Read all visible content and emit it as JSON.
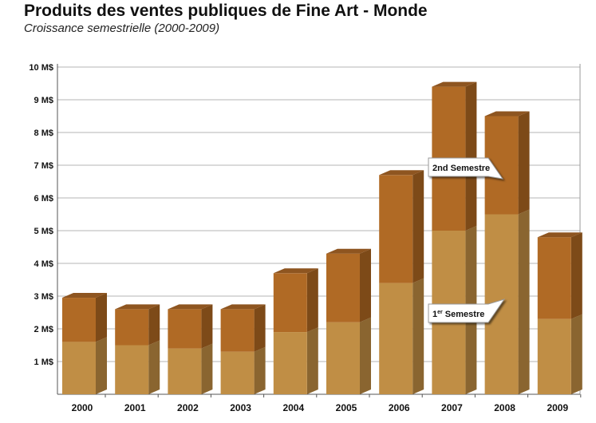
{
  "chart_data": {
    "type": "bar",
    "stacked": true,
    "title": "Produits des ventes publiques de Fine Art - Monde",
    "subtitle": "Croissance semestrielle (2000-2009)",
    "xlabel": "",
    "ylabel": "",
    "ylim": [
      0,
      10
    ],
    "yticks": [
      "1 M$",
      "2 M$",
      "3 M$",
      "4 M$",
      "5 M$",
      "6 M$",
      "7 M$",
      "8 M$",
      "9 M$",
      "10 M$"
    ],
    "grid": true,
    "categories": [
      "2000",
      "2001",
      "2002",
      "2003",
      "2004",
      "2005",
      "2006",
      "2007",
      "2008",
      "2009"
    ],
    "series": [
      {
        "name": "1er Semestre",
        "color": "#c08e45",
        "values": [
          1.6,
          1.5,
          1.4,
          1.3,
          1.9,
          2.2,
          3.4,
          5.0,
          5.5,
          2.3
        ]
      },
      {
        "name": "2nd Semestre",
        "color": "#b06a25",
        "values": [
          1.35,
          1.1,
          1.2,
          1.3,
          1.8,
          2.1,
          3.3,
          4.4,
          3.0,
          2.5
        ]
      }
    ],
    "annotations": [
      {
        "text": "2nd Semestre",
        "sup": "nd",
        "base": "2",
        "rest": " Semestre"
      },
      {
        "text": "1er Semestre",
        "sup": "er",
        "base": "1",
        "rest": " Semestre"
      }
    ]
  }
}
